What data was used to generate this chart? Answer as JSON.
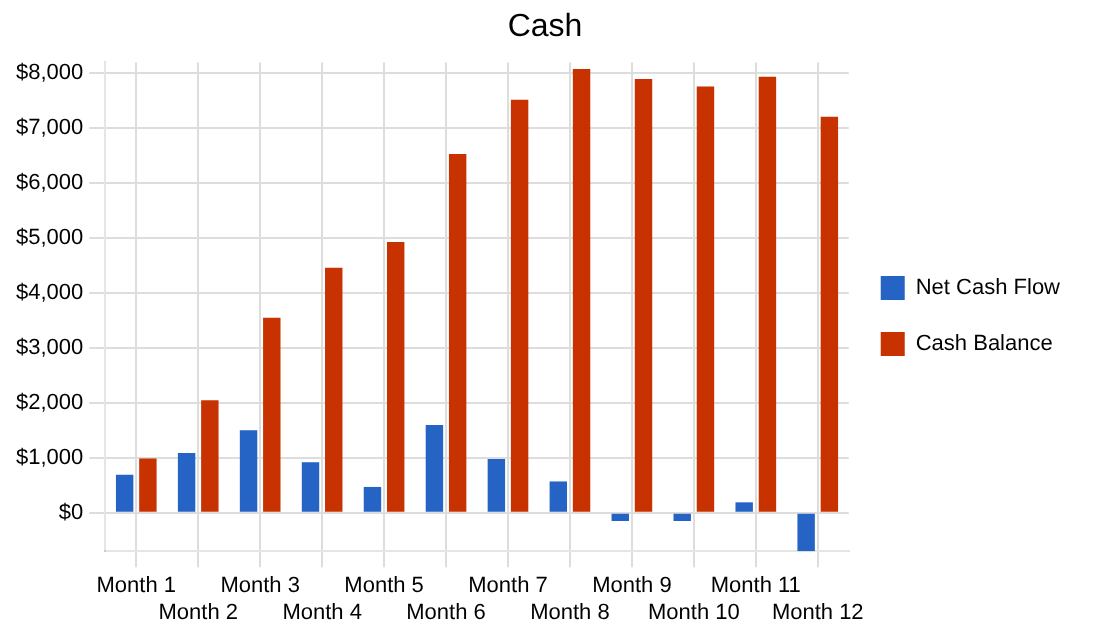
{
  "chart_data": {
    "type": "bar",
    "title": "Cash",
    "categories": [
      "Month 1",
      "Month 2",
      "Month 3",
      "Month 4",
      "Month 5",
      "Month 6",
      "Month 7",
      "Month 8",
      "Month 9",
      "Month 10",
      "Month 11",
      "Month 12"
    ],
    "series": [
      {
        "name": "Net Cash Flow",
        "color": "#2563c4",
        "values": [
          690,
          1090,
          1500,
          920,
          470,
          1600,
          980,
          570,
          -150,
          -150,
          190,
          -700
        ]
      },
      {
        "name": "Cash Balance",
        "color": "#c83200",
        "values": [
          990,
          2050,
          3550,
          4460,
          4930,
          6530,
          7520,
          8080,
          7900,
          7760,
          7940,
          7210
        ]
      }
    ],
    "ylim": [
      -700,
      8200
    ],
    "yticks": [
      {
        "value": 0,
        "label": "$0"
      },
      {
        "value": 1000,
        "label": "$1,000"
      },
      {
        "value": 2000,
        "label": "$2,000"
      },
      {
        "value": 3000,
        "label": "$3,000"
      },
      {
        "value": 4000,
        "label": "$4,000"
      },
      {
        "value": 5000,
        "label": "$5,000"
      },
      {
        "value": 6000,
        "label": "$6,000"
      },
      {
        "value": 7000,
        "label": "$7,000"
      },
      {
        "value": 8000,
        "label": "$8,000"
      }
    ],
    "grid": true,
    "legend": "right"
  }
}
